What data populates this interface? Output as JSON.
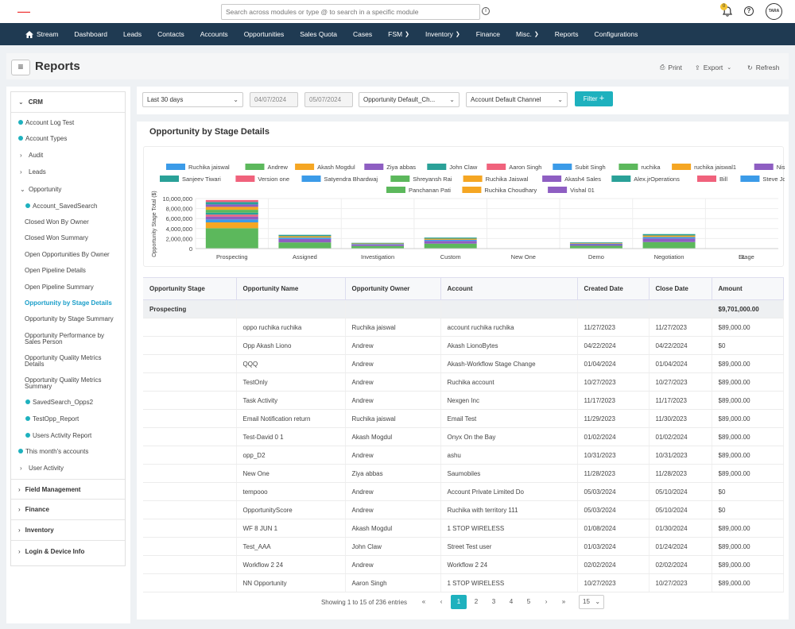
{
  "topbar": {
    "search_placeholder": "Search across modules or type @ to search in a specific module",
    "notif_count": "0",
    "avatar_text": "TARA"
  },
  "nav": {
    "items": [
      "Stream",
      "Dashboard",
      "Leads",
      "Contacts",
      "Accounts",
      "Opportunities",
      "Sales Quota",
      "Cases",
      "FSM",
      "Inventory",
      "Finance",
      "Misc.",
      "Reports",
      "Configurations"
    ]
  },
  "header": {
    "title": "Reports",
    "print": "Print",
    "export": "Export",
    "refresh": "Refresh"
  },
  "sidebar": {
    "crm": "CRM",
    "items": [
      "Account Log Test",
      "Account Types",
      "Audit",
      "Leads",
      "Opportunity",
      "Account_SavedSearch",
      "Closed Won By Owner",
      "Closed Won Summary",
      "Open Opportunities By Owner",
      "Open Pipeline Details",
      "Open Pipeline Summary",
      "Opportunity by Stage Details",
      "Opportunity by Stage Summary",
      "Opportunity Performance by",
      "Sales Person",
      "Opportunity Quality Metrics",
      "Details",
      "Opportunity Quality Metrics",
      "Summary",
      "SavedSearch_Opps2",
      "TestOpp_Report",
      "Users Activity Report",
      "This month's accounts",
      "User Activity"
    ],
    "sections": [
      "Field Management",
      "Finance",
      "Inventory",
      "Login & Device Info"
    ]
  },
  "filters": {
    "period": "Last 30 days",
    "from": "04/07/2024",
    "to": "05/07/2024",
    "channel1": "Opportunity Default_Ch...",
    "channel2": "Account Default Channel",
    "filter_btn": "Filter"
  },
  "section_title": "Opportunity by Stage Details",
  "chart_data": {
    "type": "bar",
    "stacked": true,
    "ylabel": "Opportunity Stage Total ($)",
    "xlabel": "Stage",
    "categories": [
      "Prospecting",
      "Assigned",
      "Investigation",
      "Custom",
      "New One",
      "Demo",
      "Negotiation",
      "LL"
    ],
    "ylim": [
      0,
      10000000
    ],
    "yticks": [
      "10,000,000",
      "8,000,000",
      "6,000,000",
      "4,000,000",
      "2,000,000",
      "0"
    ],
    "legend": [
      "Ruchika jaiswal",
      "Andrew",
      "Akash Mogdul",
      "Ziya abbas",
      "John Claw",
      "Aaron Singh",
      "Subit Singh",
      "ruchika",
      "ruchika jaiswal1",
      "Nisha",
      "Sanjeev Tiwari",
      "Version one",
      "Satyendra Bhardwaj",
      "Shreyansh Rai",
      "Ruchika Jaiswal",
      "Akash4 Sales",
      "Alex.jrOperations",
      "Bill",
      "Steve Jobs",
      "Panchanan Pati",
      "Ruchika Choudhary",
      "Vishal 01"
    ],
    "colors": [
      "#3b9be8",
      "#5cb85c",
      "#f5a623",
      "#8e5ec2",
      "#2aa198",
      "#f0627c",
      "#3b9be8",
      "#5cb85c",
      "#f5a623",
      "#8e5ec2",
      "#2aa198",
      "#f0627c",
      "#3b9be8",
      "#5cb85c",
      "#f5a623",
      "#8e5ec2",
      "#2aa198",
      "#f0627c",
      "#3b9be8",
      "#5cb85c",
      "#f5a623",
      "#8e5ec2"
    ],
    "totals": [
      9701000,
      2750000,
      1150000,
      2200000,
      0,
      1250000,
      2900000,
      0
    ]
  },
  "table": {
    "headers": [
      "Opportunity Stage",
      "Opportunity Name",
      "Opportunity Owner",
      "Account",
      "Created Date",
      "Close Date",
      "Amount"
    ],
    "group": {
      "stage": "Prospecting",
      "amount": "$9,701,000.00"
    },
    "rows": [
      [
        "",
        "oppo ruchika ruchika",
        "Ruchika jaiswal",
        "account ruchika ruchika",
        "11/27/2023",
        "11/27/2023",
        "$89,000.00"
      ],
      [
        "",
        "Opp Akash Liono",
        "Andrew",
        "Akash LionoBytes",
        "04/22/2024",
        "04/22/2024",
        "$0"
      ],
      [
        "",
        "QQQ",
        "Andrew",
        "Akash-Workflow Stage Change",
        "01/04/2024",
        "01/04/2024",
        "$89,000.00"
      ],
      [
        "",
        "TestOnly",
        "Andrew",
        "Ruchika account",
        "10/27/2023",
        "10/27/2023",
        "$89,000.00"
      ],
      [
        "",
        "Task Activity",
        "Andrew",
        "Nexgen Inc",
        "11/17/2023",
        "11/17/2023",
        "$89,000.00"
      ],
      [
        "",
        "Email Notification return",
        "Ruchika jaiswal",
        "Email Test",
        "11/29/2023",
        "11/30/2023",
        "$89,000.00"
      ],
      [
        "",
        "Test-David 0 1",
        "Akash Mogdul",
        "Onyx On the Bay",
        "01/02/2024",
        "01/02/2024",
        "$89,000.00"
      ],
      [
        "",
        "opp_D2",
        "Andrew",
        "ashu",
        "10/31/2023",
        "10/31/2023",
        "$89,000.00"
      ],
      [
        "",
        "New One",
        "Ziya abbas",
        "Saumobiles",
        "11/28/2023",
        "11/28/2023",
        "$89,000.00"
      ],
      [
        "",
        "tempooo",
        "Andrew",
        "Account Private Limited Do",
        "05/03/2024",
        "05/10/2024",
        "$0"
      ],
      [
        "",
        "OpportunityScore",
        "Andrew",
        "Ruchika with territory 111",
        "05/03/2024",
        "05/10/2024",
        "$0"
      ],
      [
        "",
        "WF 8 JUN 1",
        "Akash Mogdul",
        "1 STOP WIRELESS",
        "01/08/2024",
        "01/30/2024",
        "$89,000.00"
      ],
      [
        "",
        "Test_AAA",
        "John Claw",
        "Street Test user",
        "01/03/2024",
        "01/24/2024",
        "$89,000.00"
      ],
      [
        "",
        "Workflow 2 24",
        "Andrew",
        "Workflow 2 24",
        "02/02/2024",
        "02/02/2024",
        "$89,000.00"
      ],
      [
        "",
        "NN Opportunity",
        "Aaron Singh",
        "1 STOP WIRELESS",
        "10/27/2023",
        "10/27/2023",
        "$89,000.00"
      ]
    ]
  },
  "pager": {
    "info": "Showing 1 to 15 of 236 entries",
    "pages": [
      "1",
      "2",
      "3",
      "4",
      "5"
    ],
    "per_page": "15"
  }
}
